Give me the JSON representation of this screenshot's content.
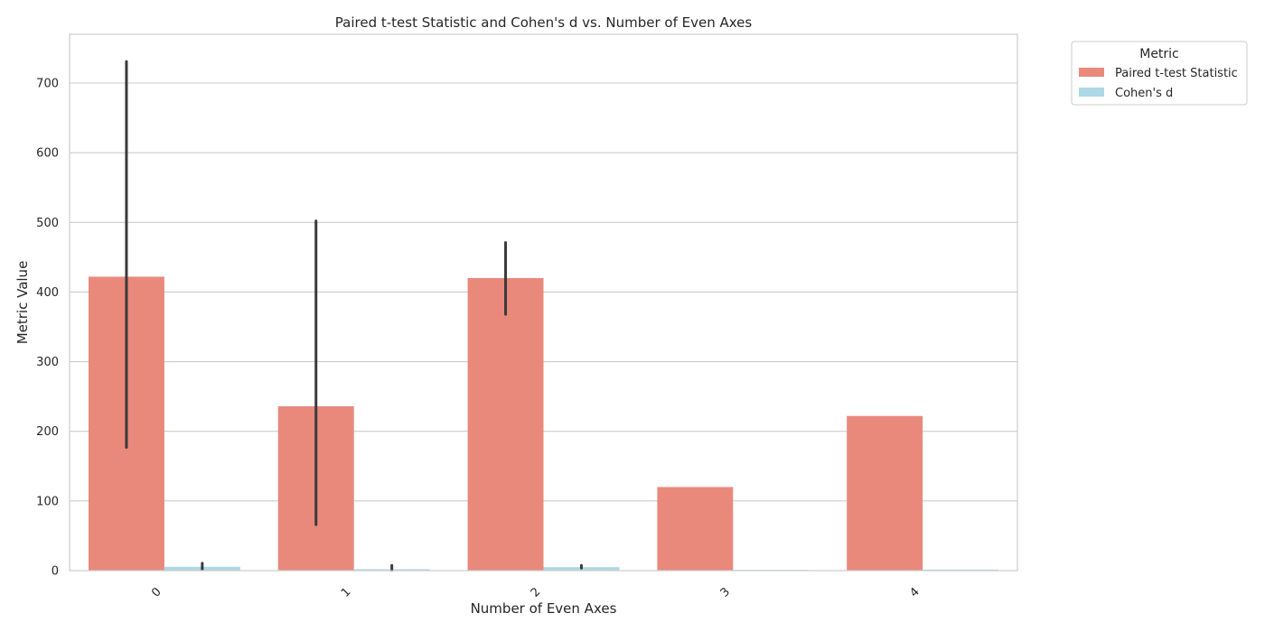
{
  "chart_data": {
    "type": "bar",
    "title": "Paired t-test Statistic and Cohen's d vs. Number of Even Axes",
    "xlabel": "Number of Even Axes",
    "ylabel": "Metric Value",
    "categories": [
      "0",
      "1",
      "2",
      "3",
      "4"
    ],
    "ylim": [
      0,
      770
    ],
    "yticks": [
      0,
      100,
      200,
      300,
      400,
      500,
      600,
      700
    ],
    "grid": "horizontal",
    "legend": {
      "title": "Metric",
      "placement": "outside-upper-right"
    },
    "series": [
      {
        "name": "Paired t-test Statistic",
        "color": "#e8897c",
        "values": [
          422,
          236,
          420,
          120,
          222
        ],
        "err_low": [
          177,
          66,
          368,
          null,
          null
        ],
        "err_high": [
          731,
          502,
          471,
          null,
          null
        ]
      },
      {
        "name": "Cohen's d",
        "color": "#add8e6",
        "values": [
          5.5,
          2.0,
          5.0,
          1.0,
          1.5
        ],
        "err_low": [
          1.5,
          0.5,
          3.5,
          null,
          null
        ],
        "err_high": [
          10.5,
          7.5,
          7.5,
          null,
          null
        ]
      }
    ],
    "errorbar_color": "#3a3a3a"
  }
}
